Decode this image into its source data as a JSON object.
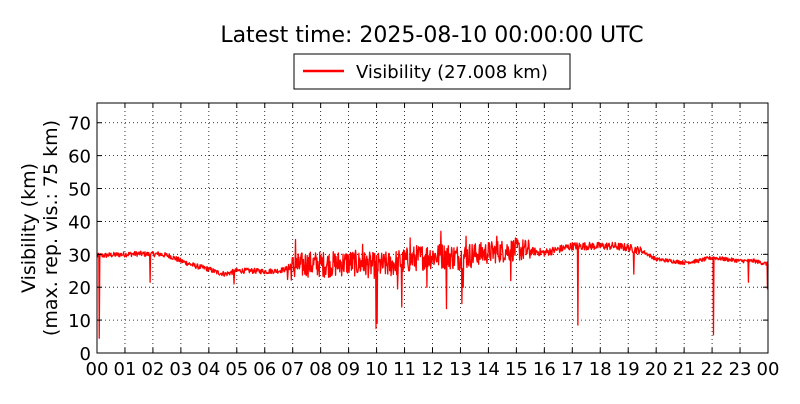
{
  "chart_data": {
    "type": "line",
    "title": "Latest time: 2025-08-10 00:00:00 UTC",
    "ylabel_line1": "Visibility (km)",
    "ylabel_line2": "(max. rep. vis.: 75 km)",
    "xlabel": "",
    "xlim": [
      0,
      24
    ],
    "ylim": [
      0,
      76
    ],
    "grid": true,
    "legend_position": "top-center",
    "x_tick_labels": [
      "00",
      "01",
      "02",
      "03",
      "04",
      "05",
      "06",
      "07",
      "08",
      "09",
      "10",
      "11",
      "12",
      "13",
      "14",
      "15",
      "16",
      "17",
      "18",
      "19",
      "20",
      "21",
      "22",
      "23",
      "00"
    ],
    "y_ticks": [
      0,
      10,
      20,
      30,
      40,
      50,
      60,
      70
    ],
    "series": [
      {
        "name": "Visibility (27.008 km)",
        "color": "#ff0000",
        "baseline_x": [
          0,
          0.5,
          1.0,
          1.5,
          1.9,
          2.2,
          2.6,
          3.0,
          3.5,
          4.0,
          4.3,
          4.6,
          5.0,
          5.5,
          6.0,
          6.5,
          7.0,
          7.5,
          8.0,
          8.5,
          9.0,
          9.5,
          10.0,
          10.5,
          11.0,
          11.5,
          12.0,
          12.5,
          13.0,
          13.5,
          14.0,
          14.5,
          15.0,
          15.5,
          16.0,
          16.5,
          17.0,
          17.5,
          18.0,
          18.5,
          19.0,
          19.5,
          20.0,
          20.5,
          21.0,
          21.5,
          22.0,
          22.5,
          23.0,
          23.5,
          24.0
        ],
        "baseline_y": [
          29.5,
          29.8,
          30.0,
          30.2,
          30.0,
          30.1,
          29.5,
          28.0,
          26.5,
          25.5,
          24.5,
          24.0,
          25.0,
          25.0,
          24.8,
          25.0,
          26.0,
          27.0,
          27.0,
          27.0,
          27.5,
          27.0,
          26.5,
          27.0,
          28.0,
          29.0,
          29.5,
          29.5,
          29.0,
          30.0,
          30.5,
          31.0,
          31.5,
          31.0,
          30.5,
          31.5,
          32.5,
          32.5,
          32.5,
          32.5,
          32.0,
          31.0,
          28.5,
          28.0,
          27.5,
          28.0,
          29.0,
          28.5,
          28.0,
          28.0,
          27.0
        ],
        "noise_regions": [
          {
            "from": 0,
            "to": 6.8,
            "amplitude": 0.8
          },
          {
            "from": 6.8,
            "to": 13.5,
            "amplitude": 4.0
          },
          {
            "from": 13.5,
            "to": 15.5,
            "amplitude": 3.5
          },
          {
            "from": 15.5,
            "to": 19.5,
            "amplitude": 1.2
          },
          {
            "from": 19.5,
            "to": 24,
            "amplitude": 0.6
          }
        ],
        "dips": [
          {
            "x": 0.08,
            "y": 4.5
          },
          {
            "x": 1.9,
            "y": 21.5
          },
          {
            "x": 4.9,
            "y": 21.0
          },
          {
            "x": 9.98,
            "y": 7.5
          },
          {
            "x": 10.02,
            "y": 9.0
          },
          {
            "x": 10.75,
            "y": 19.5
          },
          {
            "x": 10.9,
            "y": 14.0
          },
          {
            "x": 11.8,
            "y": 20.0
          },
          {
            "x": 12.5,
            "y": 13.5
          },
          {
            "x": 13.05,
            "y": 15.0
          },
          {
            "x": 13.1,
            "y": 20.0
          },
          {
            "x": 14.8,
            "y": 22.0
          },
          {
            "x": 17.2,
            "y": 8.5
          },
          {
            "x": 19.2,
            "y": 24.0
          },
          {
            "x": 22.05,
            "y": 5.5
          },
          {
            "x": 23.3,
            "y": 21.5
          },
          {
            "x": 23.98,
            "y": 19.5
          }
        ],
        "spikes": [
          {
            "x": 7.1,
            "y": 34.5
          },
          {
            "x": 9.5,
            "y": 33.0
          },
          {
            "x": 11.2,
            "y": 35.0
          },
          {
            "x": 12.3,
            "y": 37.0
          },
          {
            "x": 13.2,
            "y": 35.5
          },
          {
            "x": 14.3,
            "y": 35.5
          }
        ]
      }
    ]
  }
}
